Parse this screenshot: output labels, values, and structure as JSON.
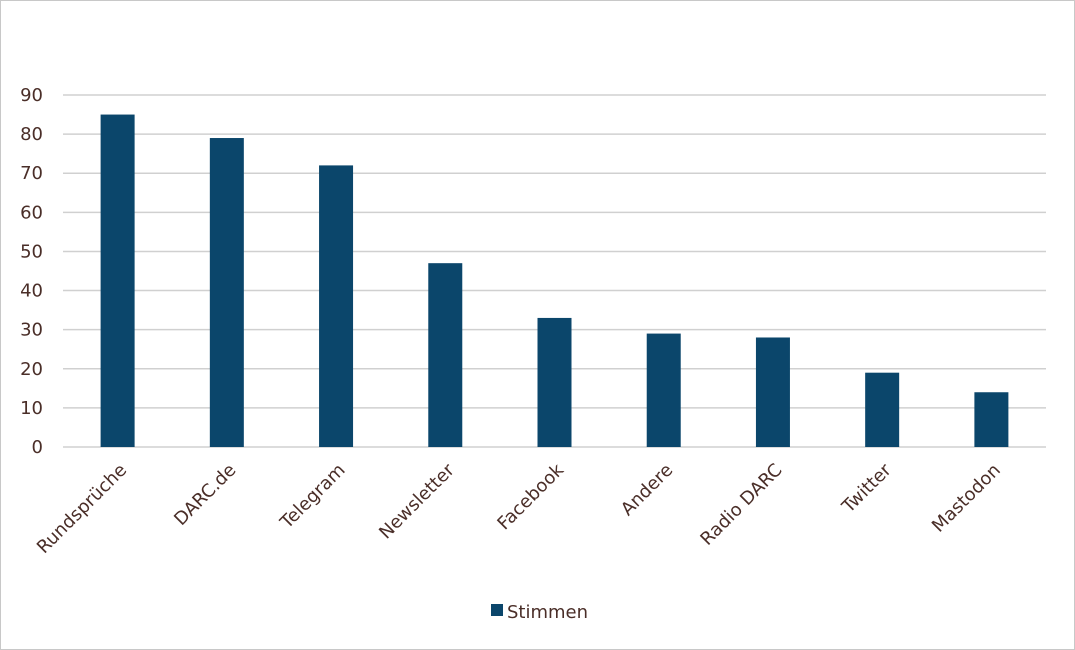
{
  "chart_data": {
    "type": "bar",
    "categories": [
      "Rundsprüche",
      "DARC.de",
      "Telegram",
      "Newsletter",
      "Facebook",
      "Andere",
      "Radio DARC",
      "Twitter",
      "Mastodon"
    ],
    "series": [
      {
        "name": "Stimmen",
        "values": [
          85,
          79,
          72,
          47,
          33,
          29,
          28,
          19,
          14
        ]
      }
    ],
    "ylim": [
      0,
      90
    ],
    "yticks": [
      0,
      10,
      20,
      30,
      40,
      50,
      60,
      70,
      80,
      90
    ],
    "grid": true,
    "legend_position": "bottom",
    "colors": {
      "bar": "#0b466b",
      "grid": "#d0d0d0",
      "text": "#4a2e28"
    }
  }
}
